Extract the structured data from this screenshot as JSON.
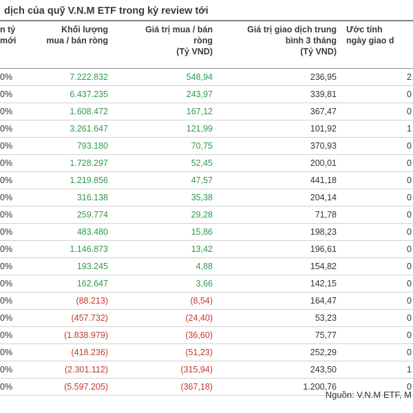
{
  "title": "dịch của quỹ V.N.M ETF trong kỳ review tới",
  "headers": [
    [
      "n tỷ",
      "mới"
    ],
    [
      "Khối lượng",
      "mua / bán ròng"
    ],
    [
      "Giá trị mua / bán",
      "ròng",
      "(Tỷ VND)"
    ],
    [
      "Giá trị giao dịch trung",
      "bình 3 tháng",
      "(Tỷ VND)"
    ],
    [
      "Ước tính",
      "ngày giao d"
    ]
  ],
  "rows": [
    {
      "pct": "0%",
      "vol": "7.222.832",
      "val": "548,94",
      "avg": "236,95",
      "days": "2",
      "sign": "pos"
    },
    {
      "pct": "0%",
      "vol": "6.437.235",
      "val": "243,97",
      "avg": "339,81",
      "days": "0",
      "sign": "pos"
    },
    {
      "pct": "0%",
      "vol": "1.608.472",
      "val": "167,12",
      "avg": "367,47",
      "days": "0",
      "sign": "pos"
    },
    {
      "pct": "0%",
      "vol": "3.261.647",
      "val": "121,99",
      "avg": "101,92",
      "days": "1",
      "sign": "pos"
    },
    {
      "pct": "0%",
      "vol": "793.180",
      "val": "70,75",
      "avg": "370,93",
      "days": "0",
      "sign": "pos"
    },
    {
      "pct": "0%",
      "vol": "1.728.297",
      "val": "52,45",
      "avg": "200,01",
      "days": "0",
      "sign": "pos"
    },
    {
      "pct": "0%",
      "vol": "1.219.856",
      "val": "47,57",
      "avg": "441,18",
      "days": "0",
      "sign": "pos"
    },
    {
      "pct": "0%",
      "vol": "316.138",
      "val": "35,38",
      "avg": "204,14",
      "days": "0",
      "sign": "pos"
    },
    {
      "pct": "0%",
      "vol": "259.774",
      "val": "29,28",
      "avg": "71,78",
      "days": "0",
      "sign": "pos"
    },
    {
      "pct": "0%",
      "vol": "483.480",
      "val": "15,86",
      "avg": "198,23",
      "days": "0",
      "sign": "pos"
    },
    {
      "pct": "0%",
      "vol": "1.146.873",
      "val": "13,42",
      "avg": "196,61",
      "days": "0",
      "sign": "pos"
    },
    {
      "pct": "0%",
      "vol": "193.245",
      "val": "4,88",
      "avg": "154,82",
      "days": "0",
      "sign": "pos"
    },
    {
      "pct": "0%",
      "vol": "162.647",
      "val": "3,66",
      "avg": "142,15",
      "days": "0",
      "sign": "pos"
    },
    {
      "pct": "0%",
      "vol": "(88.213)",
      "val": "(8,54)",
      "avg": "164,47",
      "days": "0",
      "sign": "neg"
    },
    {
      "pct": "0%",
      "vol": "(457.732)",
      "val": "(24,40)",
      "avg": "53,23",
      "days": "0",
      "sign": "neg"
    },
    {
      "pct": "0%",
      "vol": "(1.838.979)",
      "val": "(36,60)",
      "avg": "75,77",
      "days": "0",
      "sign": "neg"
    },
    {
      "pct": "0%",
      "vol": "(418.236)",
      "val": "(51,23)",
      "avg": "252,29",
      "days": "0",
      "sign": "neg"
    },
    {
      "pct": "0%",
      "vol": "(2.301.112)",
      "val": "(315,94)",
      "avg": "243,50",
      "days": "1",
      "sign": "neg"
    },
    {
      "pct": "0%",
      "vol": "(5.597.205)",
      "val": "(367,18)",
      "avg": "1.200,76",
      "days": "0",
      "sign": "neg"
    }
  ],
  "source": "Nguồn: V.N.M ETF, M",
  "colors": {
    "positive": "#2e9a4c",
    "negative": "#c0392b"
  }
}
